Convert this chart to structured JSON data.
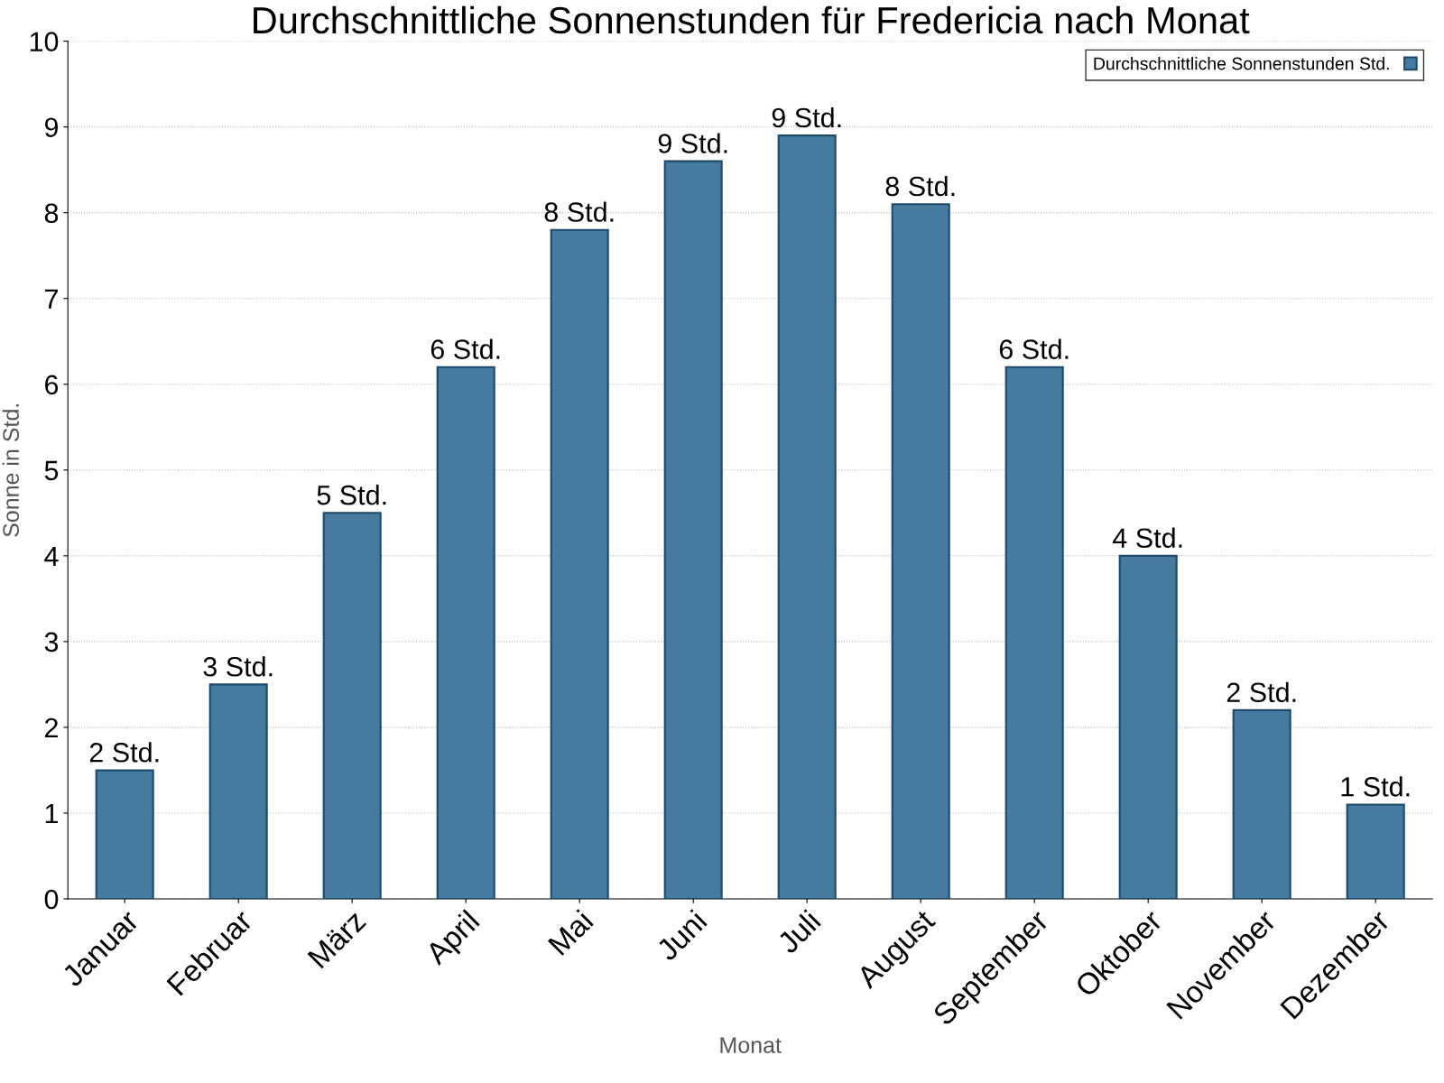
{
  "chart_data": {
    "type": "bar",
    "title": "Durchschnittliche Sonnenstunden für Fredericia nach Monat",
    "xlabel": "Monat",
    "ylabel": "Sonne in Std.",
    "categories": [
      "Januar",
      "Februar",
      "März",
      "April",
      "Mai",
      "Juni",
      "Juli",
      "August",
      "September",
      "Oktober",
      "November",
      "Dezember"
    ],
    "series": [
      {
        "name": "Durchschnittliche Sonnenstunden Std.",
        "color": "#467a9e",
        "values": [
          1.5,
          2.5,
          4.5,
          6.2,
          7.8,
          8.6,
          8.9,
          8.1,
          6.2,
          4.0,
          2.2,
          1.1
        ],
        "value_labels": [
          "2 Std.",
          "3 Std.",
          "5 Std.",
          "6 Std.",
          "8 Std.",
          "9 Std.",
          "9 Std.",
          "8 Std.",
          "6 Std.",
          "4 Std.",
          "2 Std.",
          "1 Std."
        ]
      }
    ],
    "ylim": [
      0,
      10
    ],
    "yticks": [
      0,
      1,
      2,
      3,
      4,
      5,
      6,
      7,
      8,
      9,
      10
    ],
    "grid": "y",
    "legend": "top right"
  }
}
